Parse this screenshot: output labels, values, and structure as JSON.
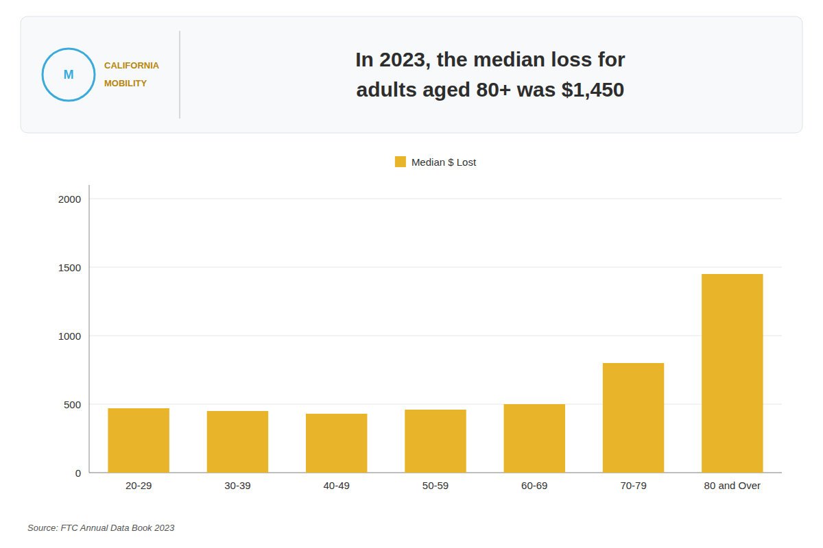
{
  "chart_data": {
    "type": "bar",
    "title": "In 2023, the median loss for\nadults aged 80+ was $1,450",
    "annotations": [
      "M",
      "CALIFORNIA",
      "MOBILITY",
      "Source: FTC Annual Data Book 2023"
    ],
    "categories": [
      "20-29",
      "30-39",
      "40-49",
      "50-59",
      "60-69",
      "70-79",
      "80 and Over"
    ],
    "series": [
      {
        "name": "Median $ Lost",
        "color": "#E8B42A",
        "values": [
          470,
          450,
          430,
          460,
          500,
          800,
          1450
        ]
      }
    ],
    "ylim": [
      0,
      2100
    ],
    "yticks": [
      0,
      500,
      1000,
      1500,
      2000
    ],
    "grid": true,
    "legend": "top"
  }
}
